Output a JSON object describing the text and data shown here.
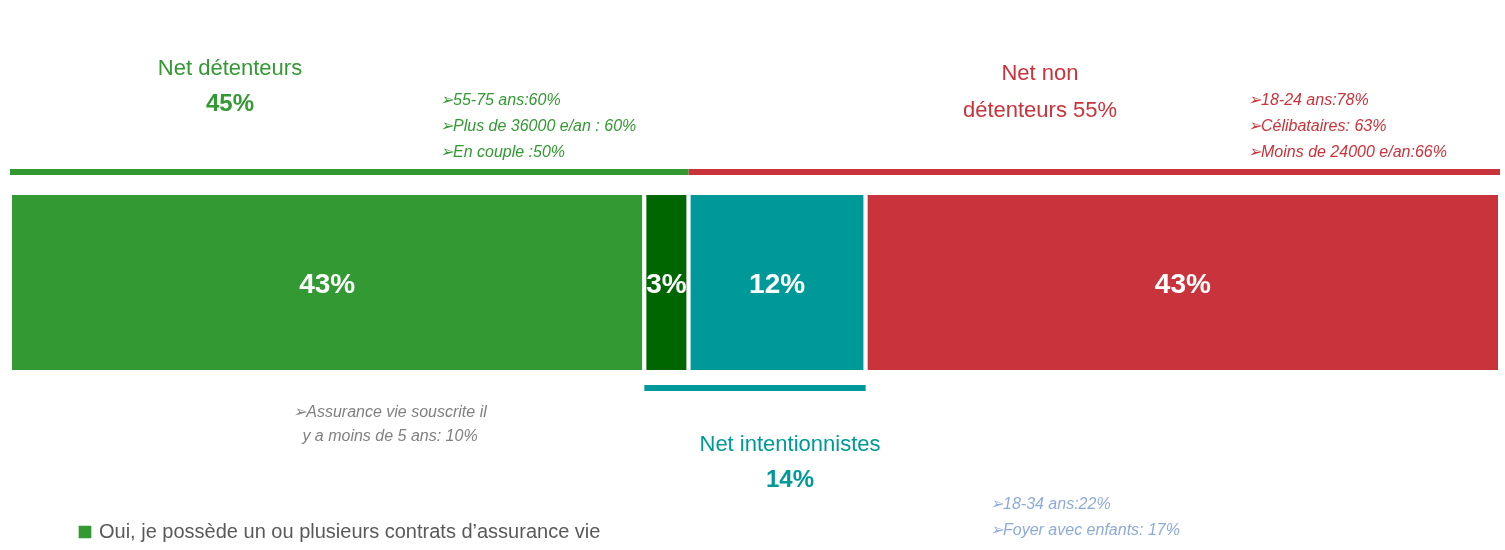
{
  "chart_data": {
    "type": "bar",
    "orientation": "horizontal",
    "stacked": true,
    "categories": [
      null
    ],
    "tick_labels": false,
    "legend": "bottom",
    "series": [
      {
        "name": "Oui, je possède un ou plusieurs contrats d’assurance vie",
        "color": "#339933",
        "values": [
          43
        ],
        "value_labels": [
          "43%"
        ]
      },
      {
        "color": "#006600",
        "values": [
          3
        ],
        "value_labels": [
          "3%"
        ]
      },
      {
        "color": "#009999",
        "values": [
          12
        ],
        "value_labels": [
          "12%"
        ]
      },
      {
        "color": "#c9333b",
        "values": [
          43
        ],
        "value_labels": [
          "43%"
        ]
      }
    ],
    "annotations": [
      "Net détenteurs",
      "45%",
      "➢55-75 ans:60%",
      "➢Plus de 36000 e/an : 60%",
      "➢En couple :50%",
      "Net non",
      "détenteurs 55%",
      "➢18-24 ans:78%",
      "➢Célibataires: 63%",
      "➢Moins de 24000 e/an:66%",
      "Net intentionnistes",
      "14%",
      "➢18-34 ans:22%",
      "➢Foyer avec enfants: 17%",
      "➢Assurance vie souscrite il\ny a moins de 5 ans: 10%"
    ]
  }
}
